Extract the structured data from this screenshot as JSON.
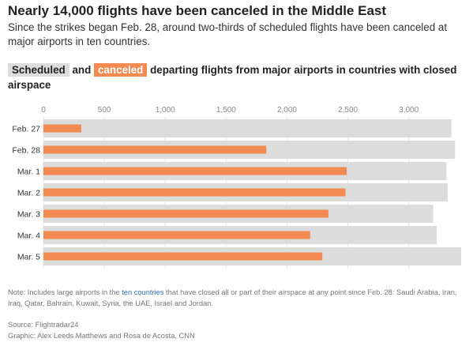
{
  "header": {
    "title": "Nearly 14,000 flights have been canceled in the Middle East",
    "subtitle": "Since the strikes began Feb. 28, around two-thirds of scheduled flights have been canceled at major airports in ten countries."
  },
  "legend": {
    "scheduled_label": "Scheduled",
    "and_text": "and",
    "canceled_label": "canceled",
    "rest_text": "departing flights from major airports in countries with closed airspace"
  },
  "colors": {
    "scheduled": "#dcdcdc",
    "canceled": "#f28a52",
    "link": "#2f6fb5"
  },
  "chart_data": {
    "type": "bar",
    "orientation": "horizontal",
    "title": "",
    "xlabel": "",
    "ylabel": "",
    "categories": [
      "Feb. 27",
      "Feb. 28",
      "Mar. 1",
      "Mar. 2",
      "Mar. 3",
      "Mar. 4",
      "Mar. 5"
    ],
    "series": [
      {
        "name": "Scheduled",
        "values": [
          3350,
          3380,
          3310,
          3320,
          3200,
          3230,
          3430
        ]
      },
      {
        "name": "canceled",
        "values": [
          310,
          1830,
          2490,
          2480,
          2340,
          2190,
          2290
        ]
      }
    ],
    "xlim": [
      0,
      3430
    ],
    "x_ticks": [
      0,
      500,
      1000,
      1500,
      2000,
      2500,
      3000
    ],
    "x_tick_labels": [
      "0",
      "500",
      "1,000",
      "1,500",
      "2,000",
      "2,500",
      "3,000"
    ],
    "grid": true,
    "legend_placement": "top"
  },
  "footer": {
    "note_prefix": "Note: Includes large airports in the",
    "note_link": "ten countries",
    "note_suffix": "that have closed all or part of their airspace at any point since Feb. 28: Saudi Arabia, Iran, Iraq, Qatar, Bahrain, Kuwait, Syria, the UAE, Israel and Jordan.",
    "source": "Source: Flightradar24",
    "credit": "Graphic: Alex Leeds Matthews and Rosa de Acosta, CNN"
  }
}
